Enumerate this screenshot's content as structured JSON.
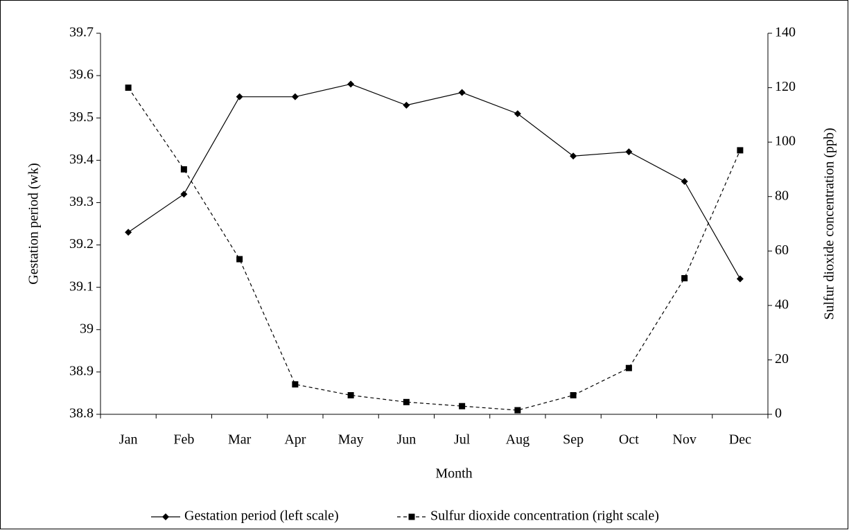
{
  "chart_data": {
    "type": "line",
    "x_label": "Month",
    "y_label": "Gestation period (wk)",
    "y2_label": "Sulfur dioxide concentration (ppb)",
    "categories": [
      "Jan",
      "Feb",
      "Mar",
      "Apr",
      "May",
      "Jun",
      "Jul",
      "Aug",
      "Sep",
      "Oct",
      "Nov",
      "Dec"
    ],
    "ylim": [
      38.8,
      39.7
    ],
    "yticks": [
      38.8,
      38.9,
      39,
      39.1,
      39.2,
      39.3,
      39.4,
      39.5,
      39.6,
      39.7
    ],
    "y2lim": [
      0,
      140
    ],
    "y2ticks": [
      0,
      20,
      40,
      60,
      80,
      100,
      120,
      140
    ],
    "grid": false,
    "legend": "bottom",
    "series": [
      {
        "name": "Gestation period (left scale)",
        "color": "#000000",
        "line_style": "solid",
        "marker": "diamond",
        "values": [
          39.23,
          39.32,
          39.55,
          39.55,
          39.58,
          39.53,
          39.56,
          39.51,
          39.41,
          39.42,
          39.35,
          39.12
        ]
      },
      {
        "name": "Sulfur dioxide concentration (right scale)",
        "color": "#000000",
        "line_style": "dashed",
        "marker": "square",
        "axis": "y2",
        "values": [
          120,
          90,
          57,
          11,
          7,
          4.5,
          3,
          1.5,
          7,
          17,
          50,
          97
        ]
      }
    ]
  }
}
